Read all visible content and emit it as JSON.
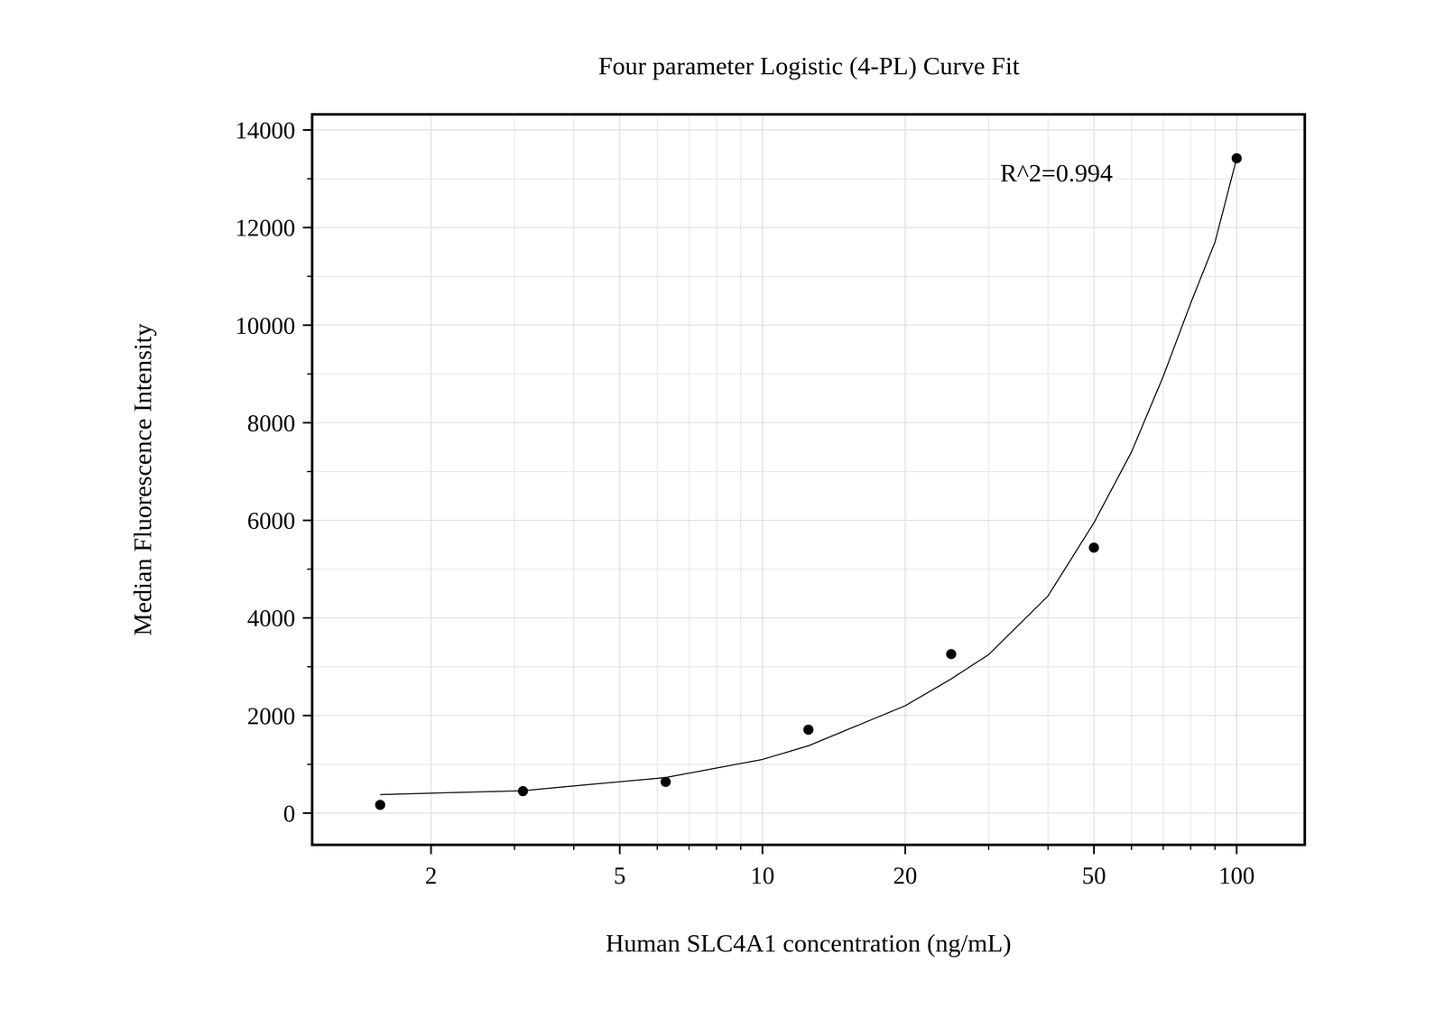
{
  "chart_data": {
    "type": "scatter",
    "title": "Four parameter Logistic (4-PL) Curve Fit",
    "x_label": "Human SLC4A1 concentration (ng/mL)",
    "y_label": "Median Fluorescence Intensity",
    "annotation": "R^2=0.994",
    "log": "x",
    "grid": true,
    "xlim": [
      1.123,
      139.2
    ],
    "ylim": [
      -650,
      14320
    ],
    "xticks": [
      2,
      5,
      10,
      20,
      50,
      100
    ],
    "yticks": [
      0,
      2000,
      4000,
      6000,
      8000,
      10000,
      12000,
      14000
    ],
    "series": [
      {
        "type": "scatter",
        "marker": "circle",
        "color": "#000000",
        "x": [
          1.5625,
          3.125,
          6.25,
          12.5,
          25,
          50,
          100
        ],
        "values": [
          170,
          450,
          640,
          1710,
          3260,
          5440,
          13420
        ]
      },
      {
        "type": "line",
        "line_style": "solid",
        "color": "#000000",
        "x": [
          1.5625,
          3.125,
          6.25,
          10,
          12.5,
          20,
          25,
          30,
          40,
          50,
          60,
          70,
          80,
          90,
          100
        ],
        "values": [
          380,
          460,
          730,
          1100,
          1380,
          2200,
          2750,
          3250,
          4450,
          5950,
          7400,
          8950,
          10450,
          11700,
          13420
        ]
      }
    ]
  }
}
